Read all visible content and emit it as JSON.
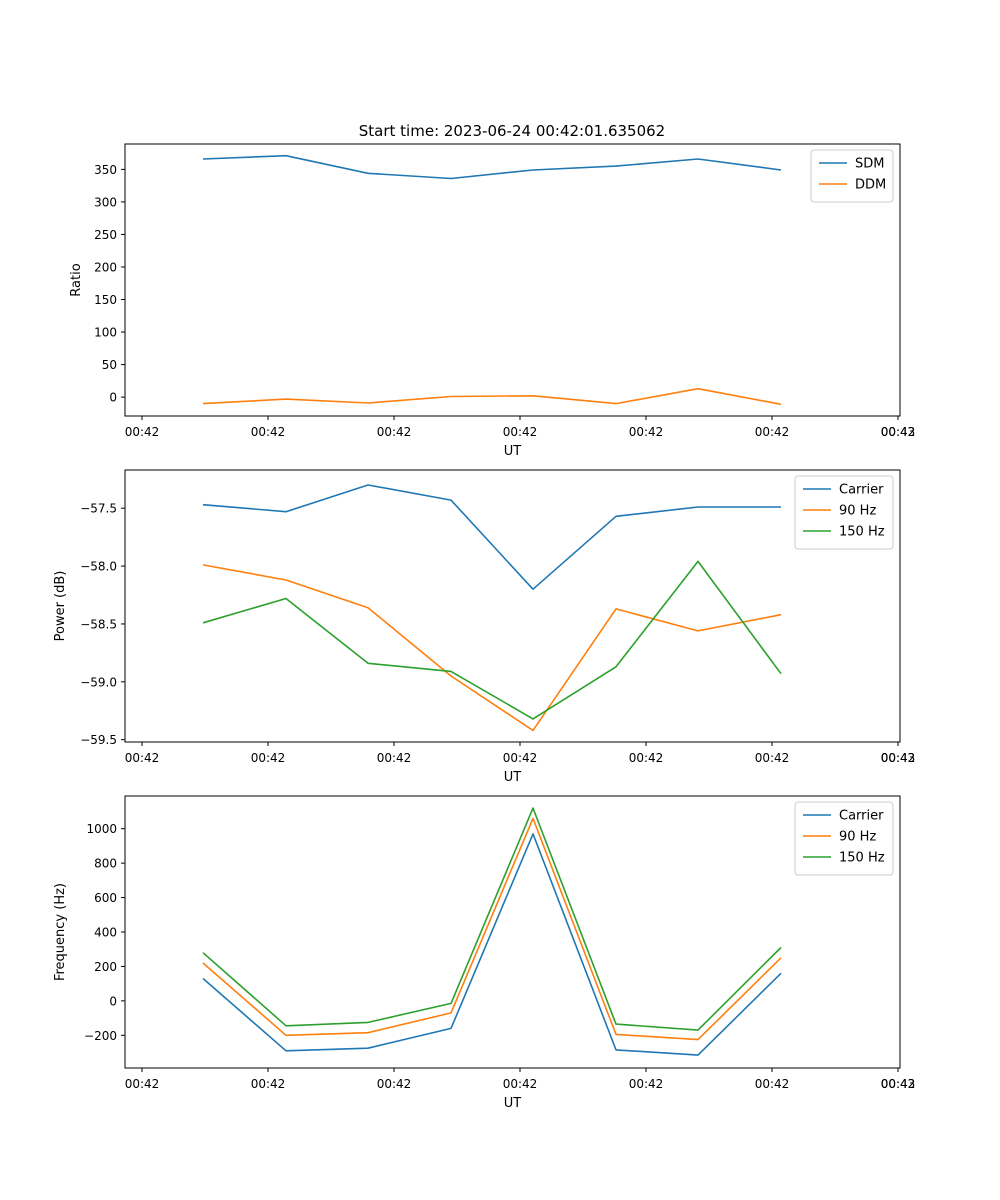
{
  "figure": {
    "title": "Start time: 2023-06-24 00:42:01.635062"
  },
  "chart_data": [
    {
      "type": "line",
      "xlabel": "UT",
      "ylabel": "Ratio",
      "x_ticks": [
        "00:42",
        "00:42",
        "00:42",
        "00:42",
        "00:42",
        "00:42",
        "00:42",
        "00:43"
      ],
      "ylim": [
        -29,
        389
      ],
      "y_ticks": [
        0,
        50,
        100,
        150,
        200,
        250,
        300,
        350
      ],
      "legend": "top-right",
      "grid": false,
      "series": [
        {
          "name": "SDM",
          "color": "#1f77b4",
          "values": [
            366,
            371,
            344,
            336,
            349,
            355,
            366,
            349
          ]
        },
        {
          "name": "DDM",
          "color": "#ff7f0e",
          "values": [
            -10,
            -3,
            -9,
            1,
            2,
            -10,
            13,
            -11
          ]
        }
      ]
    },
    {
      "type": "line",
      "xlabel": "UT",
      "ylabel": "Power (dB)",
      "x_ticks": [
        "00:42",
        "00:42",
        "00:42",
        "00:42",
        "00:42",
        "00:42",
        "00:42",
        "00:43"
      ],
      "ylim": [
        -59.52,
        -57.17
      ],
      "y_ticks": [
        -59.5,
        -59.0,
        -58.5,
        -58.0,
        -57.5
      ],
      "legend": "top-right",
      "grid": false,
      "series": [
        {
          "name": "Carrier",
          "color": "#1f77b4",
          "values": [
            -57.47,
            -57.53,
            -57.3,
            -57.43,
            -58.2,
            -57.57,
            -57.49,
            -57.49
          ]
        },
        {
          "name": "90 Hz",
          "color": "#ff7f0e",
          "values": [
            -57.99,
            -58.12,
            -58.36,
            -58.95,
            -59.42,
            -58.37,
            -58.56,
            -58.42
          ]
        },
        {
          "name": "150 Hz",
          "color": "#2ca02c",
          "values": [
            -58.49,
            -58.28,
            -58.84,
            -58.91,
            -59.32,
            -58.87,
            -57.96,
            -58.93
          ]
        }
      ]
    },
    {
      "type": "line",
      "xlabel": "UT",
      "ylabel": "Frequency (Hz)",
      "x_ticks": [
        "00:42",
        "00:42",
        "00:42",
        "00:42",
        "00:42",
        "00:42",
        "00:42",
        "00:43"
      ],
      "ylim": [
        -390,
        1190
      ],
      "y_ticks": [
        -200,
        0,
        200,
        400,
        600,
        800,
        1000
      ],
      "legend": "top-right",
      "grid": false,
      "series": [
        {
          "name": "Carrier",
          "color": "#1f77b4",
          "values": [
            130,
            -290,
            -275,
            -160,
            970,
            -285,
            -315,
            160
          ]
        },
        {
          "name": "90 Hz",
          "color": "#ff7f0e",
          "values": [
            220,
            -200,
            -185,
            -70,
            1060,
            -195,
            -225,
            250
          ]
        },
        {
          "name": "150 Hz",
          "color": "#2ca02c",
          "values": [
            280,
            -145,
            -125,
            -15,
            1120,
            -135,
            -170,
            310
          ]
        }
      ]
    }
  ]
}
